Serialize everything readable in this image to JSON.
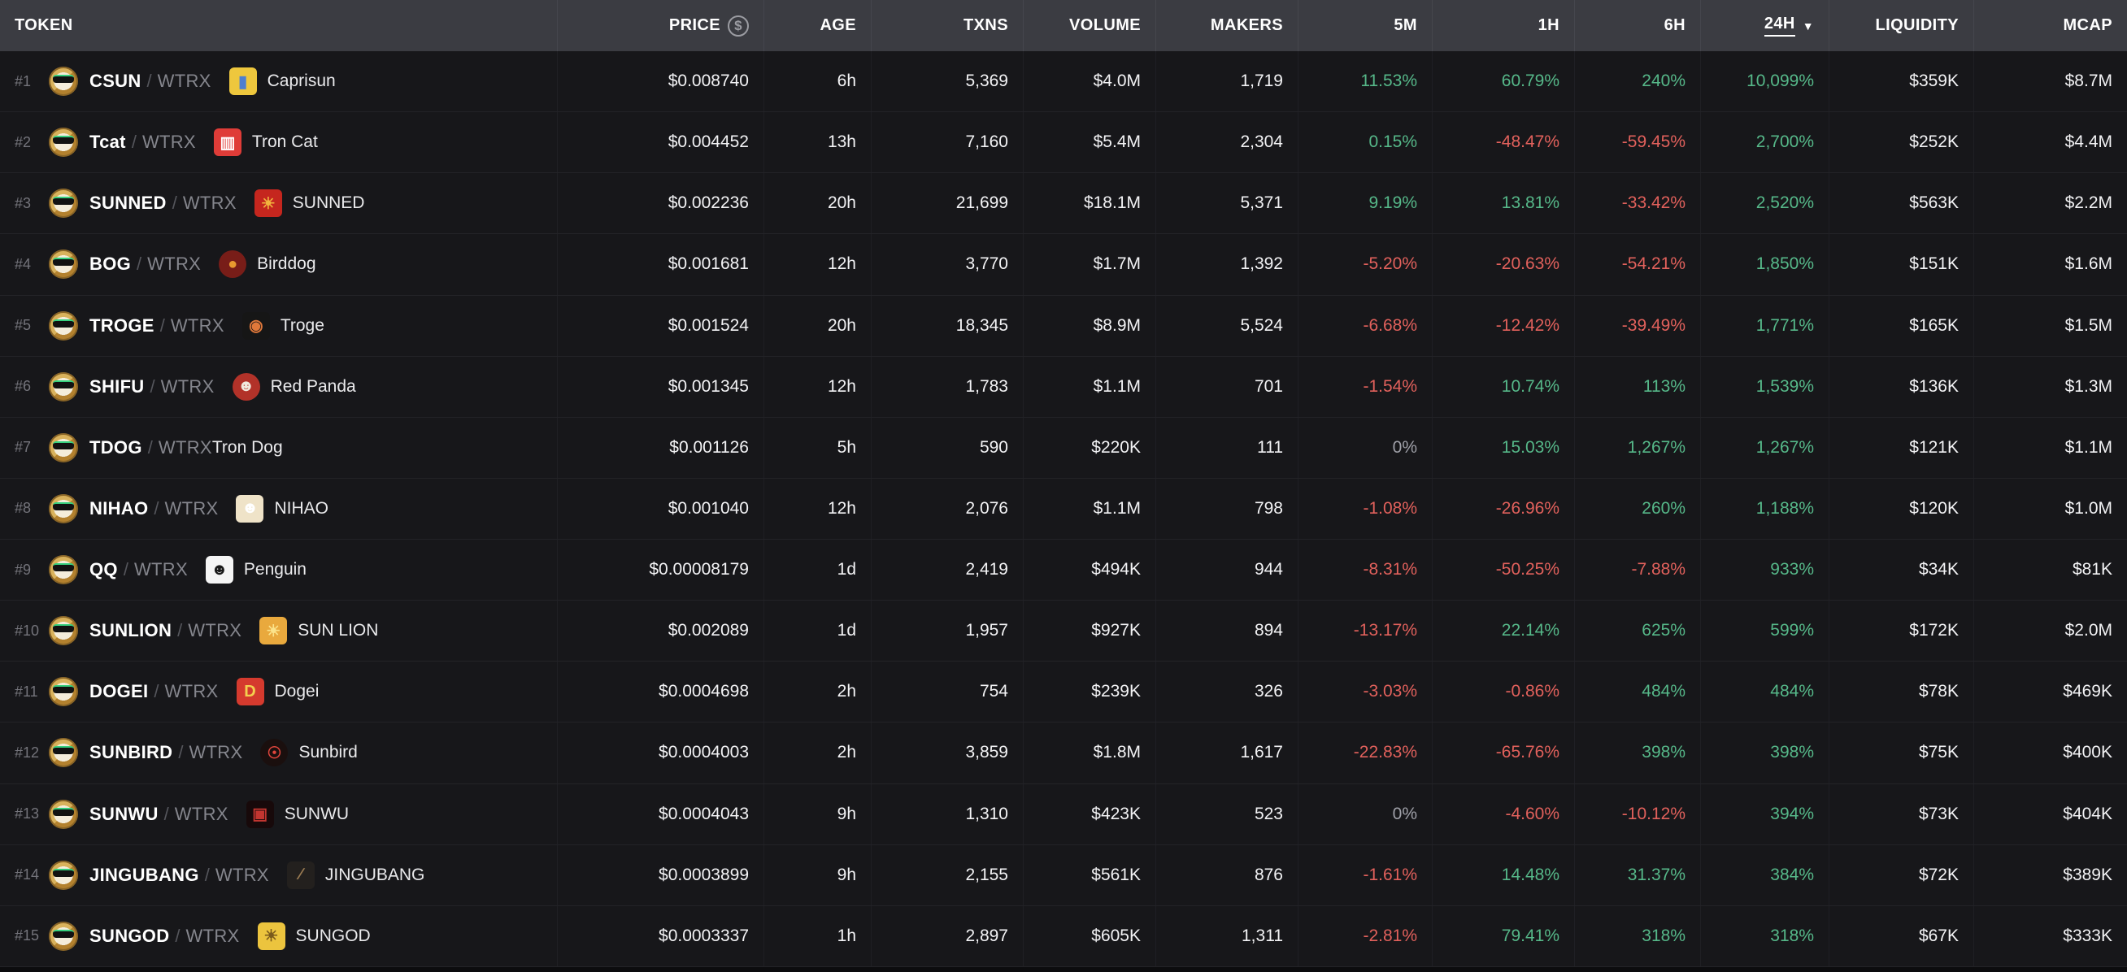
{
  "table": {
    "columns": {
      "token": "TOKEN",
      "price": "PRICE",
      "price_icon": "$",
      "age": "AGE",
      "txns": "TXNS",
      "volume": "VOLUME",
      "makers": "MAKERS",
      "m5": "5M",
      "h1": "1H",
      "h6": "6H",
      "h24": "24H",
      "sort_caret": "▼",
      "liquidity": "LIQUIDITY",
      "mcap": "MCAP"
    },
    "sorted_by": "24H",
    "quote_symbol": "WTRX",
    "pair_separator": "/",
    "colors": {
      "positive": "#56b889",
      "negative": "#e2615c",
      "neutral": "#9fa0a8",
      "header_bg": "#3b3c42",
      "row_bg": "#17171a"
    },
    "rows": [
      {
        "rank": "#1",
        "symbol": "CSUN",
        "quote": "WTRX",
        "name": "Caprisun",
        "icon": {
          "shape": "square",
          "bg": "#eec73d",
          "fg": "#4d7fd0",
          "glyph": "▮"
        },
        "price": "$0.008740",
        "age": "6h",
        "txns": "5,369",
        "volume": "$4.0M",
        "makers": "1,719",
        "m5": "11.53%",
        "h1": "60.79%",
        "h6": "240%",
        "h24": "10,099%",
        "liquidity": "$359K",
        "mcap": "$8.7M"
      },
      {
        "rank": "#2",
        "symbol": "Tcat",
        "quote": "WTRX",
        "name": "Tron Cat",
        "icon": {
          "shape": "square",
          "bg": "#df3c38",
          "fg": "#ffffff",
          "glyph": "▥"
        },
        "price": "$0.004452",
        "age": "13h",
        "txns": "7,160",
        "volume": "$5.4M",
        "makers": "2,304",
        "m5": "0.15%",
        "h1": "-48.47%",
        "h6": "-59.45%",
        "h24": "2,700%",
        "liquidity": "$252K",
        "mcap": "$4.4M"
      },
      {
        "rank": "#3",
        "symbol": "SUNNED",
        "quote": "WTRX",
        "name": "SUNNED",
        "icon": {
          "shape": "square",
          "bg": "#c5261e",
          "fg": "#f2b33d",
          "glyph": "☀"
        },
        "price": "$0.002236",
        "age": "20h",
        "txns": "21,699",
        "volume": "$18.1M",
        "makers": "5,371",
        "m5": "9.19%",
        "h1": "13.81%",
        "h6": "-33.42%",
        "h24": "2,520%",
        "liquidity": "$563K",
        "mcap": "$2.2M"
      },
      {
        "rank": "#4",
        "symbol": "BOG",
        "quote": "WTRX",
        "name": "Birddog",
        "icon": {
          "shape": "circle",
          "bg": "#781d18",
          "fg": "#e89a2f",
          "glyph": "●"
        },
        "price": "$0.001681",
        "age": "12h",
        "txns": "3,770",
        "volume": "$1.7M",
        "makers": "1,392",
        "m5": "-5.20%",
        "h1": "-20.63%",
        "h6": "-54.21%",
        "h24": "1,850%",
        "liquidity": "$151K",
        "mcap": "$1.6M"
      },
      {
        "rank": "#5",
        "symbol": "TROGE",
        "quote": "WTRX",
        "name": "Troge",
        "icon": {
          "shape": "square",
          "bg": "#161616",
          "fg": "#e0783a",
          "glyph": "◉"
        },
        "price": "$0.001524",
        "age": "20h",
        "txns": "18,345",
        "volume": "$8.9M",
        "makers": "5,524",
        "m5": "-6.68%",
        "h1": "-12.42%",
        "h6": "-39.49%",
        "h24": "1,771%",
        "liquidity": "$165K",
        "mcap": "$1.5M"
      },
      {
        "rank": "#6",
        "symbol": "SHIFU",
        "quote": "WTRX",
        "name": "Red Panda",
        "icon": {
          "shape": "circle",
          "bg": "#b23229",
          "fg": "#f1e9dd",
          "glyph": "☻"
        },
        "price": "$0.001345",
        "age": "12h",
        "txns": "1,783",
        "volume": "$1.1M",
        "makers": "701",
        "m5": "-1.54%",
        "h1": "10.74%",
        "h6": "113%",
        "h24": "1,539%",
        "liquidity": "$136K",
        "mcap": "$1.3M"
      },
      {
        "rank": "#7",
        "symbol": "TDOG",
        "quote": "WTRX",
        "name": "Tron Dog",
        "icon": null,
        "price": "$0.001126",
        "age": "5h",
        "txns": "590",
        "volume": "$220K",
        "makers": "111",
        "m5": "0%",
        "h1": "15.03%",
        "h6": "1,267%",
        "h24": "1,267%",
        "liquidity": "$121K",
        "mcap": "$1.1M"
      },
      {
        "rank": "#8",
        "symbol": "NIHAO",
        "quote": "WTRX",
        "name": "NIHAO",
        "icon": {
          "shape": "square",
          "bg": "#efe3c8",
          "fg": "#ffffff",
          "glyph": "☻"
        },
        "price": "$0.001040",
        "age": "12h",
        "txns": "2,076",
        "volume": "$1.1M",
        "makers": "798",
        "m5": "-1.08%",
        "h1": "-26.96%",
        "h6": "260%",
        "h24": "1,188%",
        "liquidity": "$120K",
        "mcap": "$1.0M"
      },
      {
        "rank": "#9",
        "symbol": "QQ",
        "quote": "WTRX",
        "name": "Penguin",
        "icon": {
          "shape": "square",
          "bg": "#f5f5f5",
          "fg": "#1a1a1a",
          "glyph": "☻"
        },
        "price": "$0.00008179",
        "age": "1d",
        "txns": "2,419",
        "volume": "$494K",
        "makers": "944",
        "m5": "-8.31%",
        "h1": "-50.25%",
        "h6": "-7.88%",
        "h24": "933%",
        "liquidity": "$34K",
        "mcap": "$81K"
      },
      {
        "rank": "#10",
        "symbol": "SUNLION",
        "quote": "WTRX",
        "name": "SUN LION",
        "icon": {
          "shape": "square",
          "bg": "#e9a93d",
          "fg": "#fbe38a",
          "glyph": "☀"
        },
        "price": "$0.002089",
        "age": "1d",
        "txns": "1,957",
        "volume": "$927K",
        "makers": "894",
        "m5": "-13.17%",
        "h1": "22.14%",
        "h6": "625%",
        "h24": "599%",
        "liquidity": "$172K",
        "mcap": "$2.0M"
      },
      {
        "rank": "#11",
        "symbol": "DOGEI",
        "quote": "WTRX",
        "name": "Dogei",
        "icon": {
          "shape": "square",
          "bg": "#d53a2e",
          "fg": "#f3cf4e",
          "glyph": "D"
        },
        "price": "$0.0004698",
        "age": "2h",
        "txns": "754",
        "volume": "$239K",
        "makers": "326",
        "m5": "-3.03%",
        "h1": "-0.86%",
        "h6": "484%",
        "h24": "484%",
        "liquidity": "$78K",
        "mcap": "$469K"
      },
      {
        "rank": "#12",
        "symbol": "SUNBIRD",
        "quote": "WTRX",
        "name": "Sunbird",
        "icon": {
          "shape": "circle",
          "bg": "#1a0f0e",
          "fg": "#e0453c",
          "glyph": "☉"
        },
        "price": "$0.0004003",
        "age": "2h",
        "txns": "3,859",
        "volume": "$1.8M",
        "makers": "1,617",
        "m5": "-22.83%",
        "h1": "-65.76%",
        "h6": "398%",
        "h24": "398%",
        "liquidity": "$75K",
        "mcap": "$400K"
      },
      {
        "rank": "#13",
        "symbol": "SUNWU",
        "quote": "WTRX",
        "name": "SUNWU",
        "icon": {
          "shape": "square",
          "bg": "#17090a",
          "fg": "#c23530",
          "glyph": "▣"
        },
        "price": "$0.0004043",
        "age": "9h",
        "txns": "1,310",
        "volume": "$423K",
        "makers": "523",
        "m5": "0%",
        "h1": "-4.60%",
        "h6": "-10.12%",
        "h24": "394%",
        "liquidity": "$73K",
        "mcap": "$404K"
      },
      {
        "rank": "#14",
        "symbol": "JINGUBANG",
        "quote": "WTRX",
        "name": "JINGUBANG",
        "icon": {
          "shape": "square",
          "bg": "#23201e",
          "fg": "#9a7b52",
          "glyph": "∕"
        },
        "price": "$0.0003899",
        "age": "9h",
        "txns": "2,155",
        "volume": "$561K",
        "makers": "876",
        "m5": "-1.61%",
        "h1": "14.48%",
        "h6": "31.37%",
        "h24": "384%",
        "liquidity": "$72K",
        "mcap": "$389K"
      },
      {
        "rank": "#15",
        "symbol": "SUNGOD",
        "quote": "WTRX",
        "name": "SUNGOD",
        "icon": {
          "shape": "square",
          "bg": "#ecc43e",
          "fg": "#7a5a1c",
          "glyph": "☀"
        },
        "price": "$0.0003337",
        "age": "1h",
        "txns": "2,897",
        "volume": "$605K",
        "makers": "1,311",
        "m5": "-2.81%",
        "h1": "79.41%",
        "h6": "318%",
        "h24": "318%",
        "liquidity": "$67K",
        "mcap": "$333K"
      }
    ]
  }
}
